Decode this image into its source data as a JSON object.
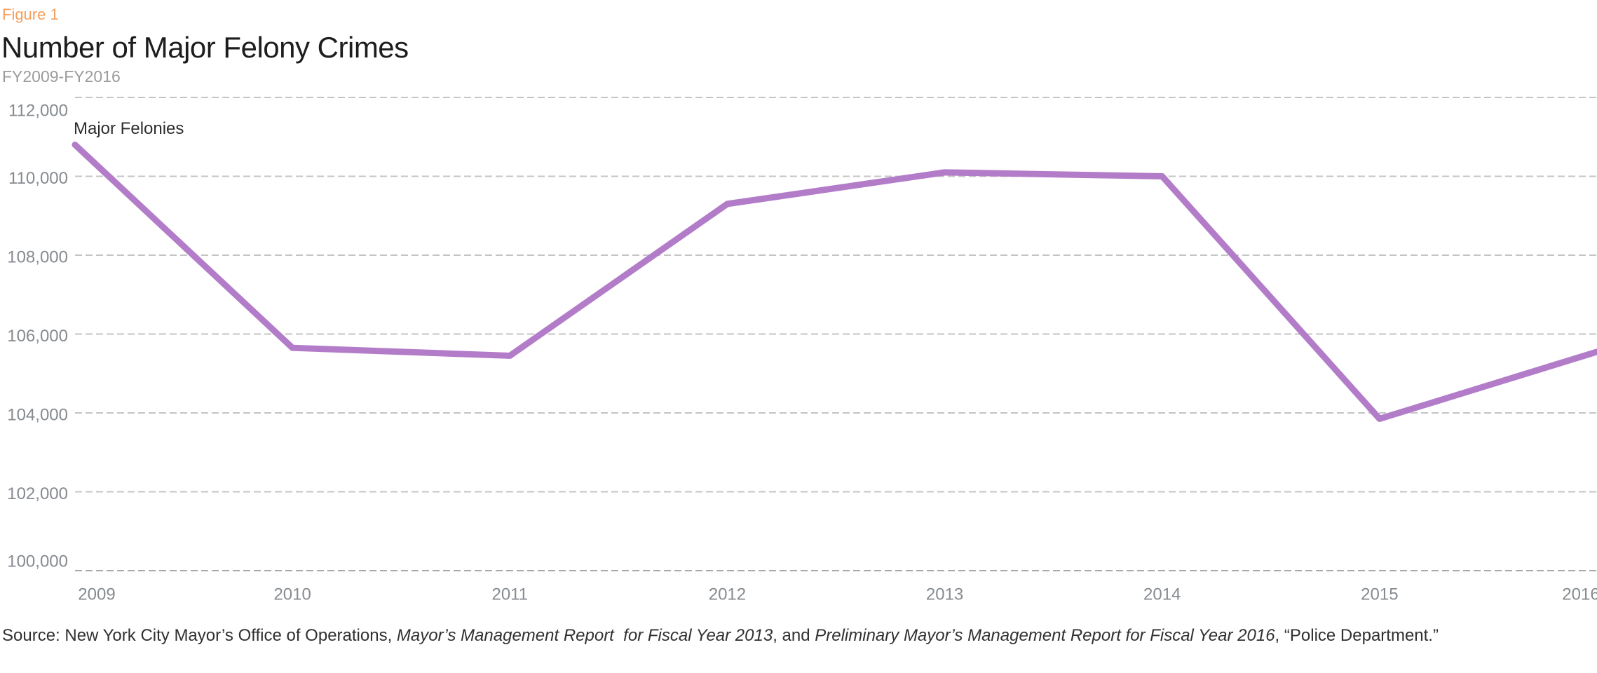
{
  "figure_label": "Figure 1",
  "title": "Number of Major Felony Crimes",
  "subtitle": "FY2009-FY2016",
  "series_annotation": "Major Felonies",
  "colors": {
    "figure_label": "#F69E5B",
    "title": "#1D1D1D",
    "subtitle": "#9B9B9B",
    "axis_label": "#868B90",
    "gridline": "#C4C4C4",
    "axis_line": "#A9A9A9",
    "line": "#B27CC9",
    "annotation": "#2E2E2E",
    "source_text": "#303030"
  },
  "chart_data": {
    "type": "line",
    "title": "Number of Major Felony Crimes",
    "subtitle": "FY2009-FY2016",
    "xlabel": "",
    "ylabel": "",
    "x": [
      "2009",
      "2010",
      "2011",
      "2012",
      "2013",
      "2014",
      "2015",
      "2016"
    ],
    "series": [
      {
        "name": "Major Felonies",
        "color": "#B27CC9",
        "values": [
          110800,
          105650,
          105450,
          109300,
          110100,
          110000,
          103850,
          105550
        ]
      }
    ],
    "ylim": [
      100000,
      112000
    ],
    "yticks": [
      {
        "value": 112000,
        "label": "112,000"
      },
      {
        "value": 110000,
        "label": "110,000"
      },
      {
        "value": 108000,
        "label": "108,000"
      },
      {
        "value": 106000,
        "label": "106,000"
      },
      {
        "value": 104000,
        "label": "104,000"
      },
      {
        "value": 102000,
        "label": "102,000"
      },
      {
        "value": 100000,
        "label": "100,000"
      }
    ],
    "grid": "horizontal-dashed",
    "legend": "inline-label-top-left"
  },
  "source": {
    "parts": [
      {
        "text": "Source: New York City Mayor’s Office of Operations, ",
        "italic": false
      },
      {
        "text": "Mayor’s Management Report  for Fiscal Year 2013",
        "italic": true
      },
      {
        "text": ", and ",
        "italic": false
      },
      {
        "text": "Preliminary Mayor’s Management Report for Fiscal Year 2016",
        "italic": true
      },
      {
        "text": ", “Police Department.”",
        "italic": false
      }
    ]
  }
}
